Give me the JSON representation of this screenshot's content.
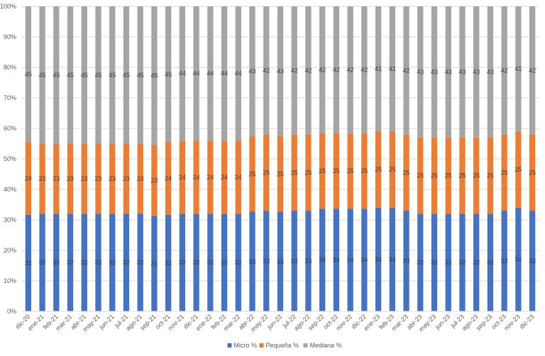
{
  "chart_data": {
    "type": "bar",
    "stacked": "percent",
    "title": "",
    "xlabel": "",
    "ylabel": "",
    "ylim": [
      0,
      100
    ],
    "yticks": [
      "0%",
      "10%",
      "20%",
      "30%",
      "40%",
      "50%",
      "60%",
      "70%",
      "80%",
      "90%",
      "100%"
    ],
    "legend_position": "bottom",
    "categories": [
      "dic-20",
      "ene-21",
      "feb-21",
      "mar-21",
      "abr-21",
      "may-21",
      "jun-21",
      "jul-21",
      "ago-21",
      "sep-21",
      "oct-21",
      "nov-21",
      "dic-21",
      "ene-22",
      "feb-22",
      "mar-22",
      "abr-22",
      "may-22",
      "jun-22",
      "jul-22",
      "ago-22",
      "sep-22",
      "oct-22",
      "nov-22",
      "dic-22",
      "ene-23",
      "feb-23",
      "mar-23",
      "abr-23",
      "may-23",
      "jun-23",
      "jul-23",
      "ago-23",
      "sep-23",
      "oct-23",
      "nov-23",
      "dic-23"
    ],
    "series": [
      {
        "name": "Micro %",
        "color": "#4472C4",
        "values": [
          32,
          32,
          32,
          32,
          32,
          32,
          32,
          32,
          32,
          31,
          32,
          32,
          32,
          32,
          32,
          32,
          33,
          33,
          33,
          33,
          33,
          34,
          34,
          34,
          34,
          34,
          34,
          33,
          32,
          32,
          32,
          32,
          32,
          32,
          33,
          34,
          33
        ],
        "labels": [
          "32",
          "32",
          "32",
          "32",
          "32",
          "32",
          "32",
          "32",
          "32",
          "31",
          "32",
          "32",
          "32",
          "32",
          "32",
          "32",
          "33",
          "33",
          "33",
          "33",
          "33",
          "34",
          "34",
          "34",
          "34",
          "34",
          "34",
          "33",
          "32",
          "32",
          "32",
          "32",
          "32",
          "32",
          "33",
          "34",
          "33"
        ]
      },
      {
        "name": "Pequeña %",
        "color": "#ED7D31",
        "values": [
          24,
          23,
          23,
          23,
          23,
          23,
          23,
          23,
          23,
          23,
          24,
          24,
          24,
          24,
          24,
          24,
          25,
          25,
          25,
          25,
          25,
          25,
          25,
          25,
          25,
          25,
          25,
          25,
          25,
          25,
          25,
          25,
          25,
          25,
          25,
          25,
          25
        ],
        "labels": [
          "24",
          "23",
          "23",
          "23",
          "23",
          "23",
          "23",
          "23",
          "23",
          "23",
          "24",
          "24",
          "24",
          "24",
          "24",
          "24",
          "25",
          "25",
          "25",
          "25",
          "25",
          "25",
          "25",
          "25",
          "25",
          "25",
          "25",
          "25",
          "25",
          "25",
          "25",
          "25",
          "25",
          "25",
          "25",
          "25",
          "25"
        ]
      },
      {
        "name": "Mediana %",
        "color": "#A5A5A5",
        "values": [
          45,
          45,
          45,
          45,
          45,
          45,
          45,
          45,
          45,
          45,
          45,
          44,
          44,
          44,
          44,
          44,
          43,
          42,
          43,
          42,
          42,
          42,
          42,
          42,
          42,
          41,
          41,
          42,
          43,
          43,
          43,
          43,
          43,
          43,
          42,
          41,
          42
        ],
        "labels": [
          "45",
          "45",
          "45",
          "45",
          "45",
          "45",
          "45",
          "45",
          "45",
          "45",
          "45",
          "44",
          "44",
          "44",
          "44",
          "44",
          "43",
          "42",
          "43",
          "42",
          "42",
          "42",
          "42",
          "42",
          "42",
          "41",
          "41",
          "42",
          "43",
          "43",
          "43",
          "43",
          "43",
          "43",
          "42",
          "41",
          "42"
        ]
      }
    ]
  }
}
